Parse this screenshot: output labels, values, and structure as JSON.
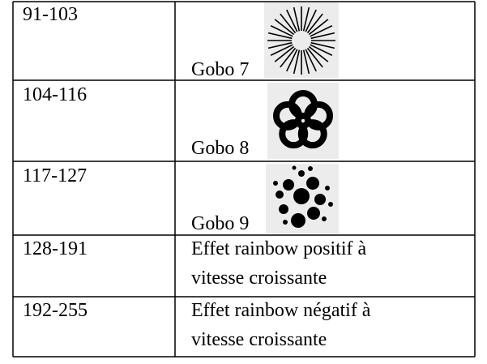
{
  "table": {
    "rows": [
      [
        "91-103",
        "Gobo 7"
      ],
      [
        "104-116",
        "Gobo 8"
      ],
      [
        "117-127",
        "Gobo 9"
      ],
      [
        "128-191",
        [
          "Effet rainbow positif à",
          "vitesse croissante"
        ]
      ],
      [
        "192-255",
        [
          "Effet rainbow négatif à",
          "vitesse croissante"
        ]
      ]
    ]
  }
}
